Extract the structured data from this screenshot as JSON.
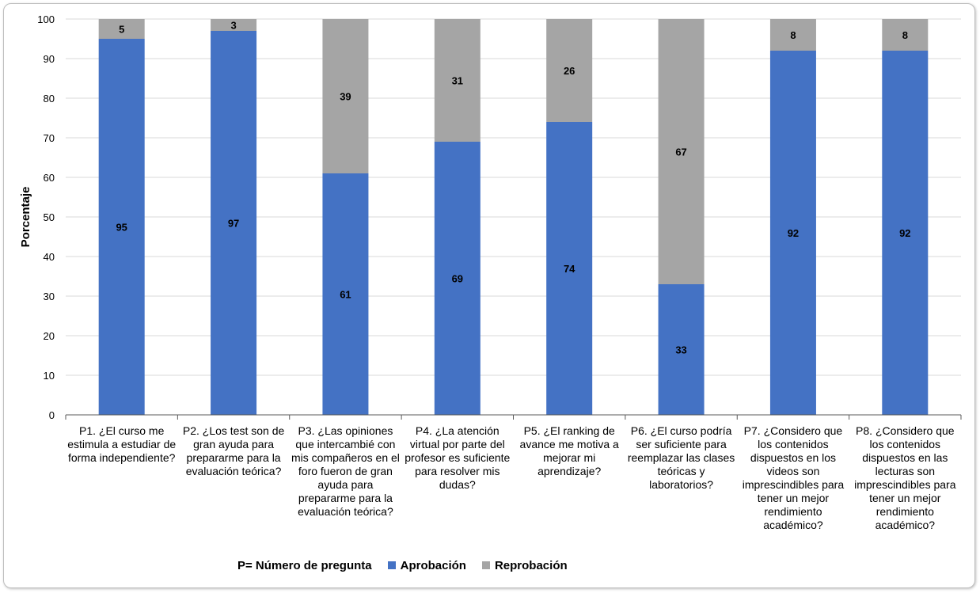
{
  "chart_data": {
    "type": "bar",
    "stacked": true,
    "title": "",
    "xlabel": "",
    "ylabel": "Porcentaje",
    "ylim": [
      0,
      100
    ],
    "yticks": [
      0,
      10,
      20,
      30,
      40,
      50,
      60,
      70,
      80,
      90,
      100
    ],
    "grid": true,
    "categories": [
      "P1. ¿El curso me estimula a estudiar de forma independiente?",
      "P2. ¿Los test son de gran ayuda para prepararme para la evaluación teórica?",
      "P3. ¿Las opiniones que intercambié con mis compañeros en el foro fueron de gran ayuda para prepararme para la evaluación teórica?",
      "P4. ¿La atención virtual por parte del profesor es suficiente para resolver mis dudas?",
      "P5. ¿El ranking de avance me motiva a mejorar mi aprendizaje?",
      "P6. ¿El curso podría ser suficiente para reemplazar las clases teóricas y laboratorios?",
      "P7. ¿Considero que los contenidos dispuestos en los videos son imprescindibles para tener un mejor rendimiento académico?",
      "P8. ¿Considero que los contenidos dispuestos en las lecturas son imprescindibles para tener un mejor rendimiento académico?"
    ],
    "series": [
      {
        "name": "Aprobación",
        "color": "#4472c4",
        "values": [
          95,
          97,
          61,
          69,
          74,
          33,
          92,
          92
        ]
      },
      {
        "name": "Reprobación",
        "color": "#a5a5a5",
        "values": [
          5,
          3,
          39,
          31,
          26,
          67,
          8,
          8
        ]
      }
    ],
    "legend": {
      "position": "bottom",
      "prefix": "P= Número de pregunta"
    }
  }
}
